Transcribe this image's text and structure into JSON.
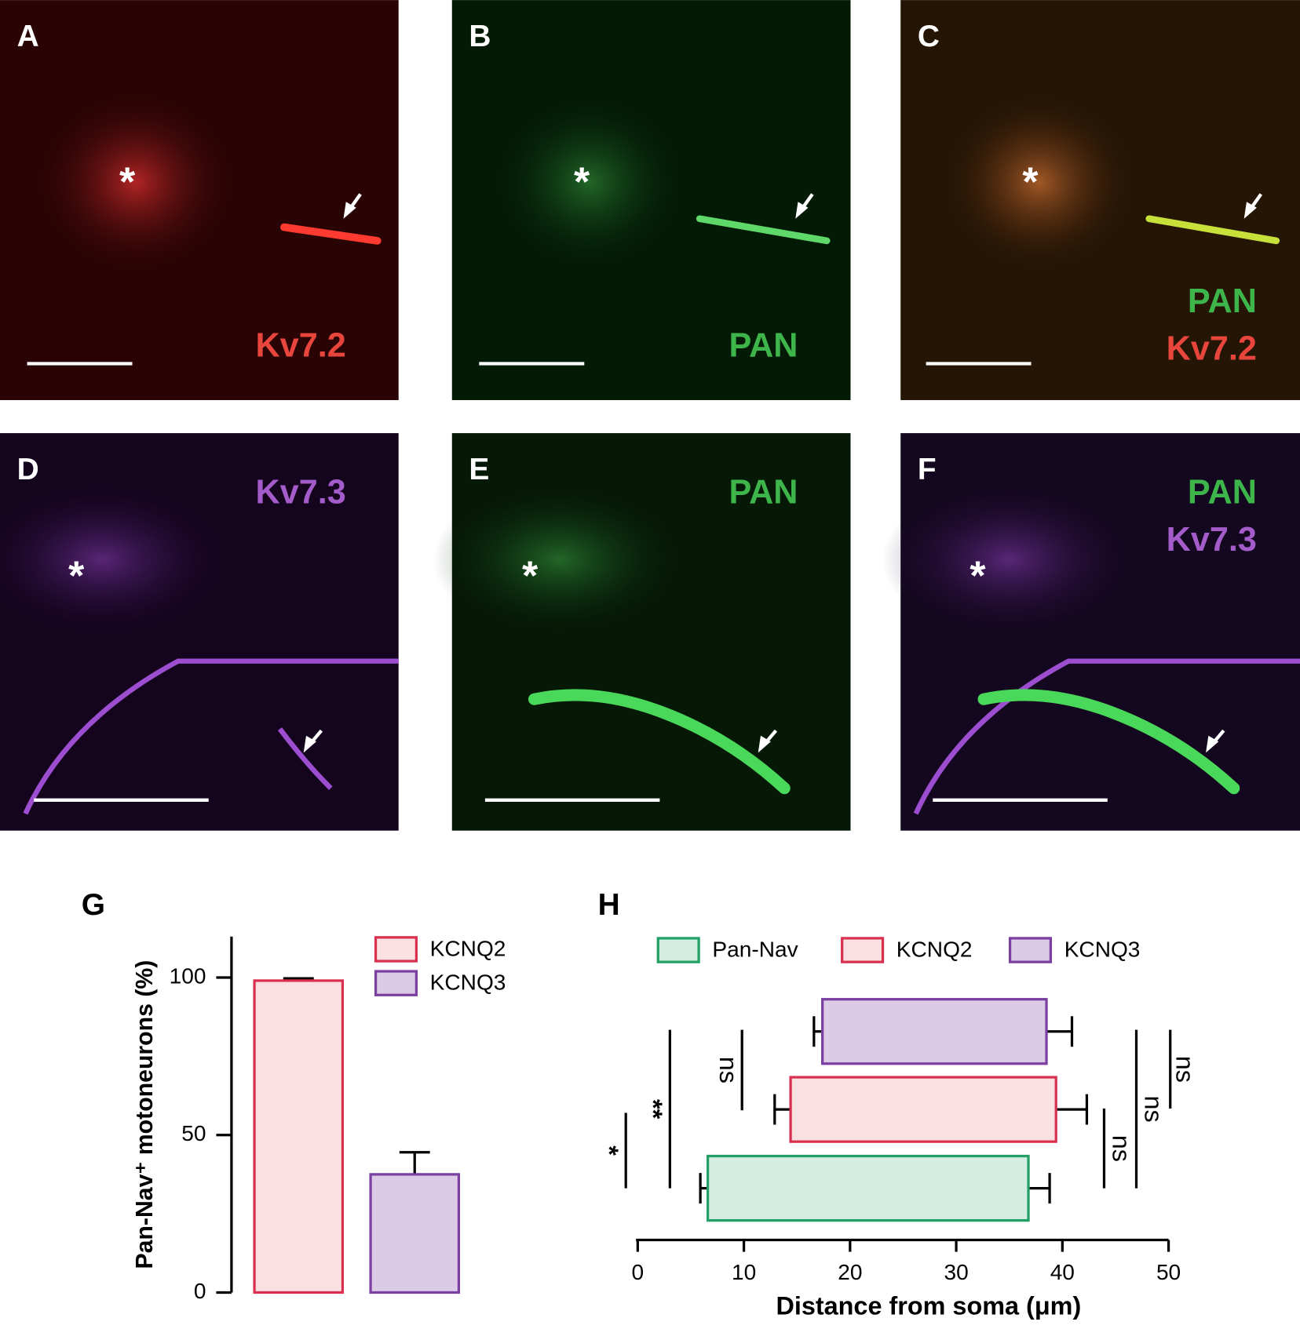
{
  "panels": [
    {
      "letter": "A",
      "marker": "*",
      "labels": [
        {
          "text": "Kv7.2",
          "color": "#e8463d"
        }
      ]
    },
    {
      "letter": "B",
      "marker": "*",
      "labels": [
        {
          "text": "PAN",
          "color": "#3db54a"
        }
      ]
    },
    {
      "letter": "C",
      "marker": "*",
      "labels": [
        {
          "text": "PAN",
          "color": "#3db54a"
        },
        {
          "text": "Kv7.2",
          "color": "#e8463d"
        }
      ]
    },
    {
      "letter": "D",
      "marker": "*",
      "labels": [
        {
          "text": "Kv7.3",
          "color": "#a35cc9"
        }
      ]
    },
    {
      "letter": "E",
      "marker": "*",
      "labels": [
        {
          "text": "PAN",
          "color": "#3db54a"
        }
      ]
    },
    {
      "letter": "F",
      "marker": "*",
      "labels": [
        {
          "text": "PAN",
          "color": "#3db54a"
        },
        {
          "text": "Kv7.3",
          "color": "#a35cc9"
        }
      ]
    }
  ],
  "chart_data": [
    {
      "type": "bar",
      "panel": "G",
      "ylabel": "Pan-Nav⁺ motoneurons (%)",
      "categories": [
        null
      ],
      "ylim": [
        0,
        113
      ],
      "yticks": [
        0,
        50,
        100
      ],
      "series": [
        {
          "name": "KCNQ2",
          "color": "#d9304f",
          "fill": "#fbe0e2",
          "values": [
            99
          ],
          "errors": [
            0.7
          ]
        },
        {
          "name": "KCNQ3",
          "color": "#7a3fa0",
          "fill": "#dccbe6",
          "values": [
            37.5
          ],
          "errors": [
            7
          ]
        }
      ]
    },
    {
      "type": "floating-bar",
      "panel": "H",
      "xlabel": "Distance from soma (μm)",
      "xlim": [
        0,
        50
      ],
      "xticks": [
        0,
        10,
        20,
        30,
        40,
        50
      ],
      "series": [
        {
          "name": "Pan-Nav",
          "color": "#22a065",
          "fill": "#d3ede2",
          "start": [
            6.6
          ],
          "end": [
            36.8
          ],
          "start_error": [
            0.7
          ],
          "end_error": [
            2.0
          ]
        },
        {
          "name": "KCNQ2",
          "color": "#d9304f",
          "fill": "#fbe0e2",
          "start": [
            14.4
          ],
          "end": [
            39.4
          ],
          "start_error": [
            1.5
          ],
          "end_error": [
            2.9
          ]
        },
        {
          "name": "KCNQ3",
          "color": "#7a3fa0",
          "fill": "#dccbe6",
          "start": [
            17.4
          ],
          "end": [
            38.5
          ],
          "start_error": [
            0.8
          ],
          "end_error": [
            2.4
          ]
        }
      ],
      "annotations": [
        {
          "label": "*"
        },
        {
          "label": "**"
        },
        {
          "label": "ns"
        },
        {
          "label": "ns"
        },
        {
          "label": "ns"
        },
        {
          "label": "ns"
        }
      ]
    }
  ]
}
